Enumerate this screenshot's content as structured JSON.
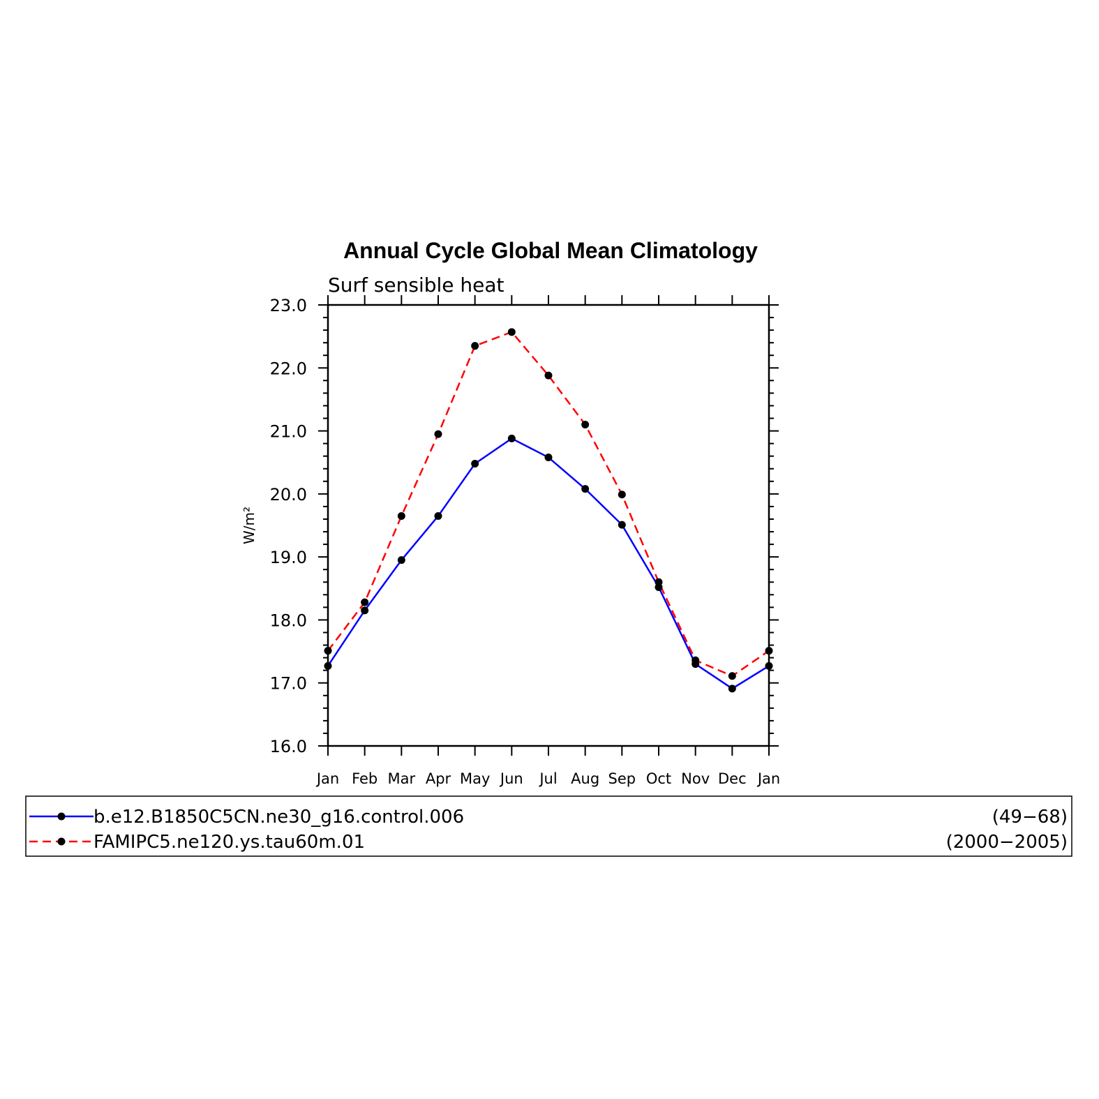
{
  "chart_data": {
    "type": "line",
    "title": "Annual Cycle Global Mean Climatology",
    "subtitle": "Surf sensible heat",
    "ylabel": "W/m²",
    "xlabel": "",
    "categories": [
      "Jan",
      "Feb",
      "Mar",
      "Apr",
      "May",
      "Jun",
      "Jul",
      "Aug",
      "Sep",
      "Oct",
      "Nov",
      "Dec",
      "Jan"
    ],
    "ylim": [
      16.0,
      23.0
    ],
    "yticks": [
      "16.0",
      "17.0",
      "18.0",
      "19.0",
      "20.0",
      "21.0",
      "22.0",
      "23.0"
    ],
    "grid": false,
    "legend_position": "bottom",
    "series": [
      {
        "name": "b.e12.B1850C5CN.ne30_g16.control.006",
        "years": "(49−68)",
        "color": "#0000ff",
        "line_style": "solid",
        "marker": "filled-circle",
        "values": [
          17.27,
          18.15,
          18.95,
          19.65,
          20.48,
          20.88,
          20.58,
          20.08,
          19.51,
          18.52,
          17.3,
          16.91,
          17.27
        ]
      },
      {
        "name": "FAMIPC5.ne120.ys.tau60m.01",
        "years": "(2000−2005)",
        "color": "#ff0000",
        "line_style": "dashed",
        "marker": "filled-circle",
        "values": [
          17.51,
          18.28,
          19.65,
          20.95,
          22.35,
          22.57,
          21.88,
          21.1,
          19.99,
          18.6,
          17.36,
          17.11,
          17.51
        ]
      }
    ]
  }
}
